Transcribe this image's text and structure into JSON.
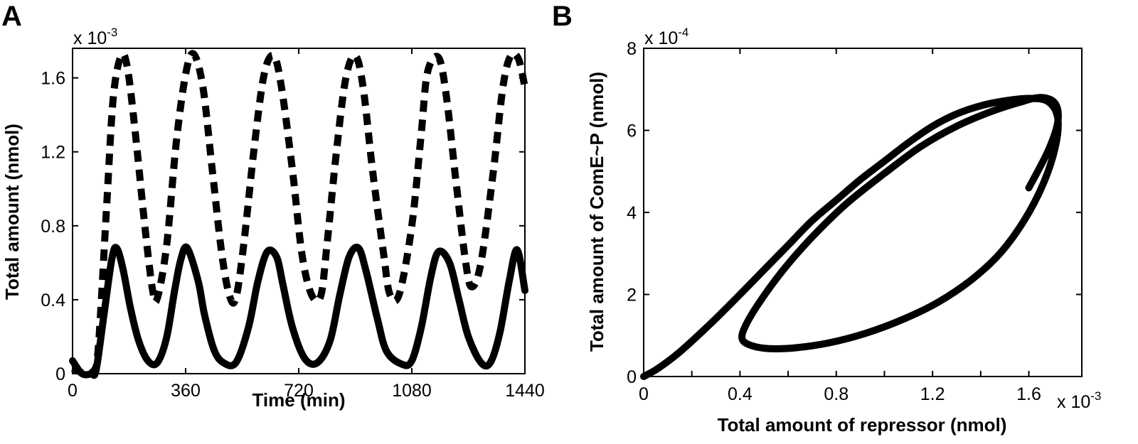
{
  "chart_data": [
    {
      "panel": "A",
      "type": "line",
      "xlabel": "Time (min)",
      "ylabel": "Total amount (nmol)",
      "y_multiplier": "x 10",
      "y_exponent": "-3",
      "xlim": [
        0,
        1440
      ],
      "ylim": [
        0,
        1.76
      ],
      "x_ticks": [
        "0",
        "360",
        "720",
        "1080",
        "1440"
      ],
      "y_ticks": [
        "0",
        "0.4",
        "0.8",
        "1.2",
        "1.6"
      ],
      "series": [
        {
          "name": "dashed",
          "style": "dashed",
          "x": [
            0,
            40,
            70,
            80,
            90,
            110,
            130,
            155,
            175,
            200,
            230,
            255,
            270,
            300,
            330,
            360,
            385,
            415,
            445,
            475,
            500,
            520,
            545,
            580,
            610,
            640,
            665,
            700,
            730,
            760,
            790,
            810,
            840,
            870,
            900,
            925,
            955,
            990,
            1010,
            1040,
            1080,
            1110,
            1130,
            1165,
            1190,
            1220,
            1250,
            1270,
            1300,
            1340,
            1370,
            1395,
            1420,
            1440
          ],
          "values": [
            0.03,
            0.0,
            0.02,
            0.1,
            0.35,
            0.95,
            1.5,
            1.72,
            1.65,
            1.3,
            0.8,
            0.45,
            0.41,
            0.7,
            1.25,
            1.62,
            1.73,
            1.55,
            1.1,
            0.65,
            0.42,
            0.41,
            0.7,
            1.25,
            1.62,
            1.72,
            1.55,
            1.1,
            0.65,
            0.43,
            0.42,
            0.7,
            1.2,
            1.6,
            1.72,
            1.55,
            1.1,
            0.65,
            0.43,
            0.43,
            0.8,
            1.3,
            1.63,
            1.71,
            1.5,
            1.05,
            0.62,
            0.47,
            0.6,
            1.1,
            1.55,
            1.72,
            1.7,
            1.55
          ]
        },
        {
          "name": "solid",
          "style": "solid",
          "x": [
            0,
            30,
            60,
            75,
            100,
            125,
            140,
            160,
            185,
            210,
            240,
            270,
            300,
            325,
            345,
            365,
            400,
            420,
            450,
            480,
            520,
            560,
            590,
            620,
            650,
            670,
            700,
            740,
            780,
            820,
            850,
            880,
            910,
            935,
            970,
            1000,
            1050,
            1080,
            1110,
            1140,
            1165,
            1200,
            1230,
            1260,
            1300,
            1330,
            1360,
            1390,
            1415,
            1440
          ],
          "values": [
            0.07,
            0.0,
            0.0,
            0.02,
            0.32,
            0.62,
            0.68,
            0.57,
            0.35,
            0.18,
            0.07,
            0.06,
            0.2,
            0.45,
            0.62,
            0.68,
            0.5,
            0.32,
            0.13,
            0.06,
            0.06,
            0.25,
            0.5,
            0.66,
            0.63,
            0.48,
            0.25,
            0.08,
            0.06,
            0.18,
            0.42,
            0.63,
            0.68,
            0.55,
            0.3,
            0.12,
            0.05,
            0.07,
            0.25,
            0.52,
            0.66,
            0.6,
            0.4,
            0.2,
            0.06,
            0.06,
            0.22,
            0.5,
            0.67,
            0.45
          ]
        }
      ]
    },
    {
      "panel": "B",
      "type": "line",
      "xlabel": "Total amount of repressor (nmol)",
      "ylabel": "Total amount of ComE~P (nmol)",
      "x_multiplier": "x 10",
      "x_exponent": "-3",
      "y_multiplier": "x 10",
      "y_exponent": "-4",
      "xlim": [
        0,
        1.82
      ],
      "ylim": [
        0,
        8
      ],
      "x_ticks": [
        "0",
        "0.4",
        "0.8",
        "1.2",
        "1.6"
      ],
      "y_ticks": [
        "0",
        "2",
        "4",
        "6",
        "8"
      ],
      "series": [
        {
          "name": "phase-loop",
          "style": "solid",
          "x": [
            0.0,
            0.06,
            0.15,
            0.28,
            0.4,
            0.5,
            0.6,
            0.7,
            0.8,
            0.9,
            1.0,
            1.1,
            1.2,
            1.3,
            1.4,
            1.5,
            1.6,
            1.68,
            1.72,
            1.71,
            1.66,
            1.58,
            1.48,
            1.36,
            1.22,
            1.08,
            0.92,
            0.77,
            0.63,
            0.52,
            0.45,
            0.41,
            0.42,
            0.48,
            0.58,
            0.7,
            0.84,
            1.0,
            1.15,
            1.3,
            1.44,
            1.56,
            1.65,
            1.71,
            1.72,
            1.68,
            1.6
          ],
          "values": [
            0.0,
            0.2,
            0.6,
            1.3,
            2.0,
            2.6,
            3.2,
            3.8,
            4.3,
            4.8,
            5.25,
            5.7,
            6.1,
            6.4,
            6.6,
            6.72,
            6.78,
            6.7,
            6.3,
            5.6,
            4.7,
            3.8,
            3.0,
            2.35,
            1.8,
            1.4,
            1.05,
            0.82,
            0.7,
            0.68,
            0.75,
            0.9,
            1.2,
            1.8,
            2.6,
            3.4,
            4.2,
            4.95,
            5.6,
            6.1,
            6.45,
            6.68,
            6.8,
            6.65,
            6.2,
            5.5,
            4.6
          ]
        }
      ]
    }
  ]
}
